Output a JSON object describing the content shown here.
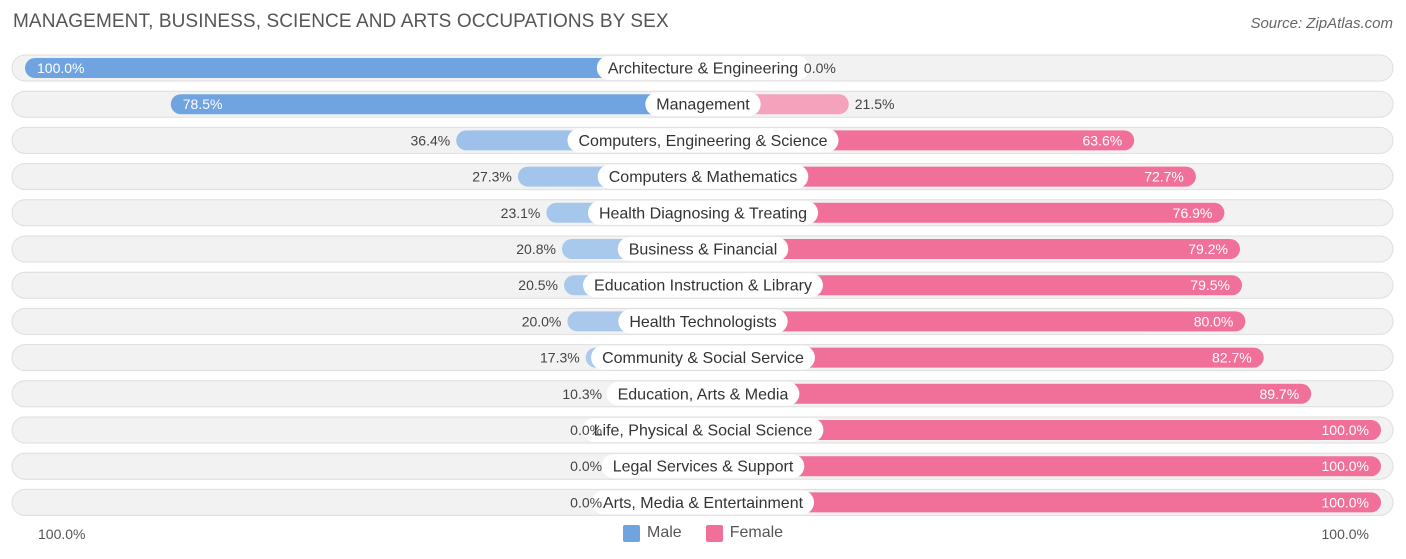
{
  "header": {
    "title": "MANAGEMENT, BUSINESS, SCIENCE AND ARTS OCCUPATIONS BY SEX",
    "source": "Source: ZipAtlas.com"
  },
  "axis": {
    "left_label": "100.0%",
    "right_label": "100.0%"
  },
  "legend": {
    "male_label": "Male",
    "female_label": "Female"
  },
  "colors": {
    "male": "#6fa4e0",
    "male_light": "#a9c9ee",
    "female": "#f07099",
    "female_light": "#f6a8c2",
    "row_bg": "#efefef",
    "row_border": "#dedede"
  },
  "chart_data": {
    "type": "bar",
    "title": "MANAGEMENT, BUSINESS, SCIENCE AND ARTS OCCUPATIONS BY SEX",
    "orientation": "diverging-horizontal",
    "xlim": [
      -100,
      100
    ],
    "categories": [
      "Architecture & Engineering",
      "Management",
      "Computers, Engineering & Science",
      "Computers & Mathematics",
      "Health Diagnosing & Treating",
      "Business & Financial",
      "Education Instruction & Library",
      "Health Technologists",
      "Community & Social Service",
      "Education, Arts & Media",
      "Life, Physical & Social Science",
      "Legal Services & Support",
      "Arts, Media & Entertainment"
    ],
    "series": [
      {
        "name": "Male",
        "values": [
          100.0,
          78.5,
          36.4,
          27.3,
          23.1,
          20.8,
          20.5,
          20.0,
          17.3,
          10.3,
          0.0,
          0.0,
          0.0
        ],
        "labels": [
          "100.0%",
          "78.5%",
          "36.4%",
          "27.3%",
          "23.1%",
          "20.8%",
          "20.5%",
          "20.0%",
          "17.3%",
          "10.3%",
          "0.0%",
          "0.0%",
          "0.0%"
        ]
      },
      {
        "name": "Female",
        "values": [
          0.0,
          21.5,
          63.6,
          72.7,
          76.9,
          79.2,
          79.5,
          80.0,
          82.7,
          89.7,
          100.0,
          100.0,
          100.0
        ],
        "labels": [
          "0.0%",
          "21.5%",
          "63.6%",
          "72.7%",
          "76.9%",
          "79.2%",
          "79.5%",
          "80.0%",
          "82.7%",
          "89.7%",
          "100.0%",
          "100.0%",
          "100.0%"
        ]
      }
    ],
    "legend_position": "bottom-center"
  }
}
